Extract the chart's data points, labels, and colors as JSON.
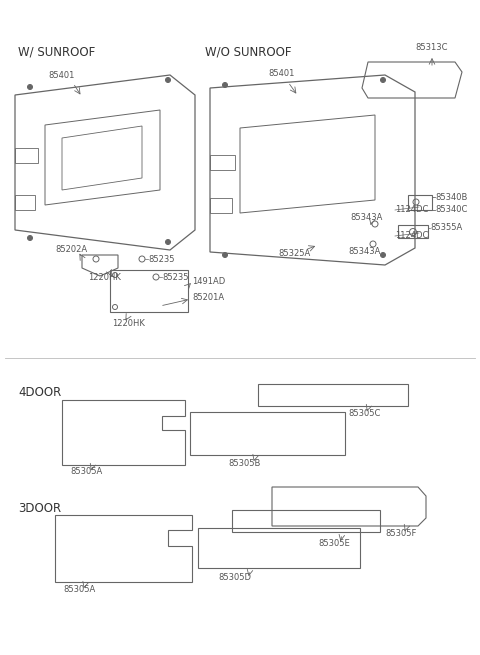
{
  "bg_color": "#ffffff",
  "line_color": "#666666",
  "text_color": "#555555",
  "label_fontsize": 6.0,
  "section_fontsize": 8.5,
  "w_sunroof_label": "W/ SUNROOF",
  "wo_sunroof_label": "W/O SUNROOF",
  "door4_label": "4DOOR",
  "door3_label": "3DOOR"
}
